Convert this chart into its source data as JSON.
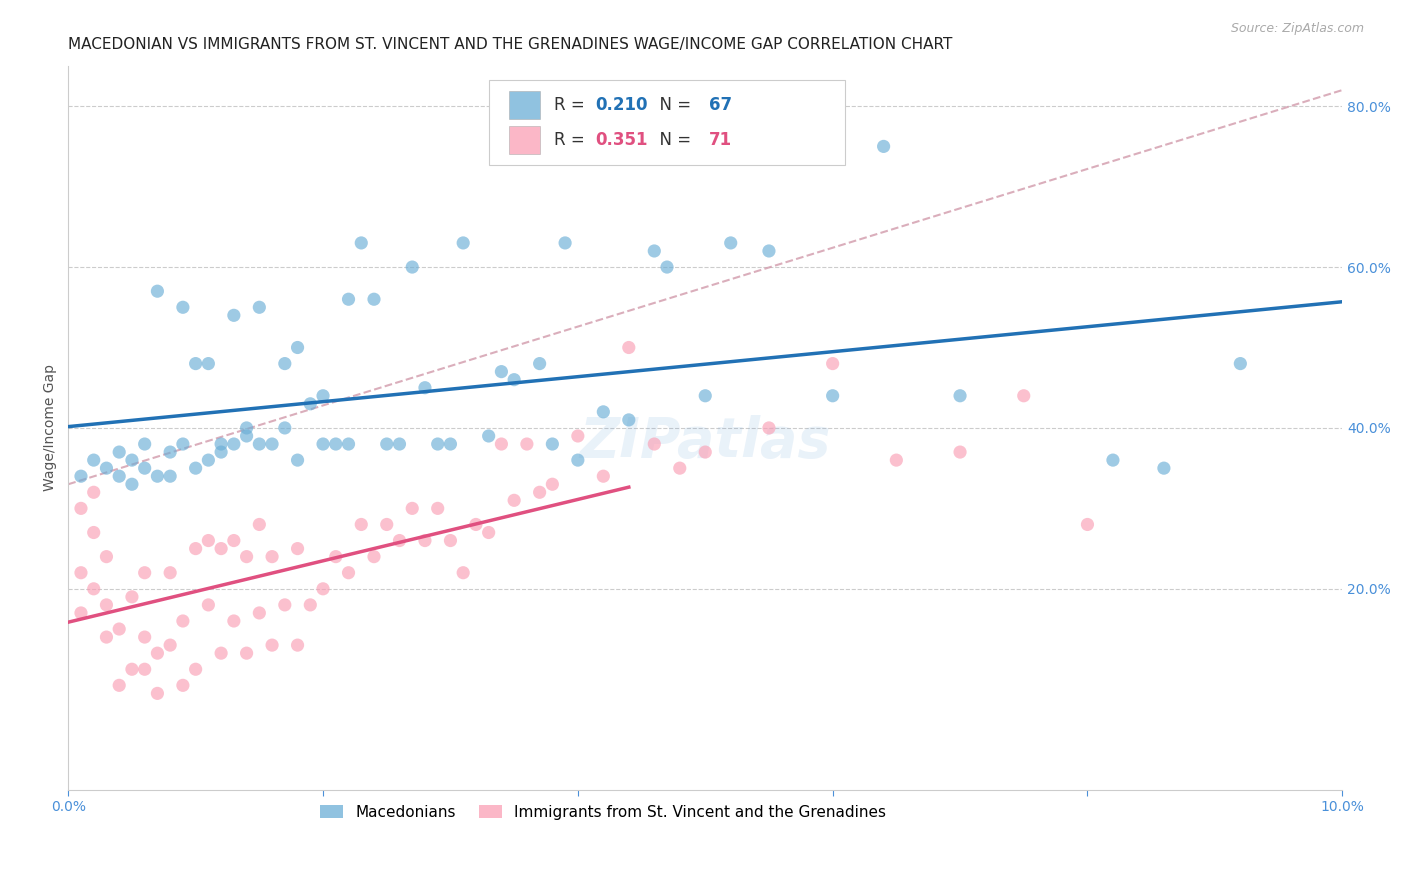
{
  "title": "MACEDONIAN VS IMMIGRANTS FROM ST. VINCENT AND THE GRENADINES WAGE/INCOME GAP CORRELATION CHART",
  "source": "Source: ZipAtlas.com",
  "ylabel": "Wage/Income Gap",
  "watermark": "ZIPatlas",
  "xlim": [
    0.0,
    0.1
  ],
  "ylim": [
    -0.05,
    0.85
  ],
  "xticks": [
    0.0,
    0.02,
    0.04,
    0.06,
    0.08,
    0.1
  ],
  "xticklabels": [
    "0.0%",
    "",
    "",
    "",
    "",
    "10.0%"
  ],
  "yticks_right": [
    0.2,
    0.4,
    0.6,
    0.8
  ],
  "ytick_right_labels": [
    "20.0%",
    "40.0%",
    "60.0%",
    "80.0%"
  ],
  "blue_R": 0.21,
  "blue_N": 67,
  "pink_R": 0.351,
  "pink_N": 71,
  "blue_color": "#6baed6",
  "pink_color": "#fa9fb5",
  "blue_line_color": "#2171b5",
  "pink_line_color": "#e05080",
  "dash_line_color": "#d4a0b0",
  "legend_label_blue": "Macedonians",
  "legend_label_pink": "Immigrants from St. Vincent and the Grenadines",
  "blue_scatter_x": [
    0.001,
    0.002,
    0.003,
    0.004,
    0.004,
    0.005,
    0.005,
    0.006,
    0.006,
    0.007,
    0.007,
    0.008,
    0.008,
    0.009,
    0.009,
    0.01,
    0.01,
    0.011,
    0.011,
    0.012,
    0.012,
    0.013,
    0.013,
    0.014,
    0.014,
    0.015,
    0.015,
    0.016,
    0.017,
    0.017,
    0.018,
    0.018,
    0.019,
    0.02,
    0.02,
    0.021,
    0.022,
    0.022,
    0.023,
    0.024,
    0.025,
    0.026,
    0.027,
    0.028,
    0.029,
    0.03,
    0.031,
    0.033,
    0.034,
    0.035,
    0.037,
    0.038,
    0.039,
    0.04,
    0.042,
    0.044,
    0.046,
    0.047,
    0.05,
    0.052,
    0.055,
    0.06,
    0.064,
    0.07,
    0.082,
    0.086,
    0.092
  ],
  "blue_scatter_y": [
    0.34,
    0.36,
    0.35,
    0.37,
    0.34,
    0.33,
    0.36,
    0.35,
    0.38,
    0.34,
    0.57,
    0.37,
    0.34,
    0.38,
    0.55,
    0.35,
    0.48,
    0.36,
    0.48,
    0.37,
    0.38,
    0.38,
    0.54,
    0.39,
    0.4,
    0.38,
    0.55,
    0.38,
    0.4,
    0.48,
    0.36,
    0.5,
    0.43,
    0.38,
    0.44,
    0.38,
    0.38,
    0.56,
    0.63,
    0.56,
    0.38,
    0.38,
    0.6,
    0.45,
    0.38,
    0.38,
    0.63,
    0.39,
    0.47,
    0.46,
    0.48,
    0.38,
    0.63,
    0.36,
    0.42,
    0.41,
    0.62,
    0.6,
    0.44,
    0.63,
    0.62,
    0.44,
    0.75,
    0.44,
    0.36,
    0.35,
    0.48
  ],
  "pink_scatter_x": [
    0.001,
    0.001,
    0.001,
    0.002,
    0.002,
    0.002,
    0.003,
    0.003,
    0.003,
    0.004,
    0.004,
    0.005,
    0.005,
    0.006,
    0.006,
    0.006,
    0.007,
    0.007,
    0.008,
    0.008,
    0.009,
    0.009,
    0.01,
    0.01,
    0.011,
    0.011,
    0.012,
    0.012,
    0.013,
    0.013,
    0.014,
    0.014,
    0.015,
    0.015,
    0.016,
    0.016,
    0.017,
    0.018,
    0.018,
    0.019,
    0.02,
    0.021,
    0.022,
    0.023,
    0.024,
    0.025,
    0.026,
    0.027,
    0.028,
    0.029,
    0.03,
    0.031,
    0.032,
    0.033,
    0.034,
    0.035,
    0.036,
    0.037,
    0.038,
    0.04,
    0.042,
    0.044,
    0.046,
    0.048,
    0.05,
    0.055,
    0.06,
    0.065,
    0.07,
    0.075,
    0.08
  ],
  "pink_scatter_y": [
    0.17,
    0.22,
    0.3,
    0.2,
    0.27,
    0.32,
    0.14,
    0.18,
    0.24,
    0.08,
    0.15,
    0.1,
    0.19,
    0.1,
    0.14,
    0.22,
    0.07,
    0.12,
    0.13,
    0.22,
    0.08,
    0.16,
    0.1,
    0.25,
    0.18,
    0.26,
    0.12,
    0.25,
    0.16,
    0.26,
    0.12,
    0.24,
    0.17,
    0.28,
    0.13,
    0.24,
    0.18,
    0.13,
    0.25,
    0.18,
    0.2,
    0.24,
    0.22,
    0.28,
    0.24,
    0.28,
    0.26,
    0.3,
    0.26,
    0.3,
    0.26,
    0.22,
    0.28,
    0.27,
    0.38,
    0.31,
    0.38,
    0.32,
    0.33,
    0.39,
    0.34,
    0.5,
    0.38,
    0.35,
    0.37,
    0.4,
    0.48,
    0.36,
    0.37,
    0.44,
    0.28
  ],
  "title_fontsize": 11,
  "axis_label_fontsize": 10,
  "tick_fontsize": 10,
  "watermark_fontsize": 40,
  "watermark_alpha": 0.13,
  "watermark_color": "#5b9bd5"
}
